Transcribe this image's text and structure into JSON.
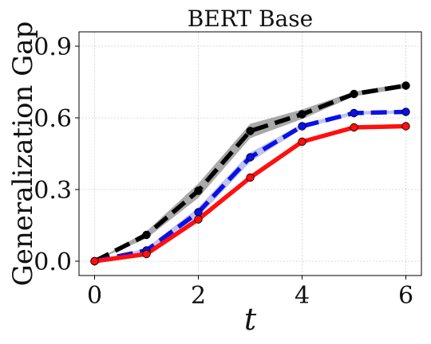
{
  "chart_data": {
    "type": "line",
    "title": "BERT Base",
    "xlabel": "t",
    "ylabel": "Generalization Gap",
    "xlim": [
      -0.3,
      6.3
    ],
    "ylim": [
      -0.06,
      0.96
    ],
    "xticks": [
      0,
      2,
      4,
      6
    ],
    "xtick_labels": [
      "0",
      "2",
      "4",
      "6"
    ],
    "yticks": [
      0.0,
      0.3,
      0.6,
      0.9
    ],
    "ytick_labels": [
      "0.0",
      "0.3",
      "0.6",
      "0.9"
    ],
    "grid": true,
    "legend": "none",
    "x": [
      0,
      1,
      2,
      3,
      4,
      5,
      6
    ],
    "series": [
      {
        "color": "#000000",
        "band_color": "#a0a0a0",
        "line_style": "dashed",
        "values": [
          0.0,
          0.11,
          0.295,
          0.545,
          0.615,
          0.7,
          0.735
        ],
        "band_low": [
          0.0,
          0.095,
          0.265,
          0.515,
          0.595,
          0.69,
          0.725
        ],
        "band_high": [
          0.0,
          0.125,
          0.325,
          0.575,
          0.635,
          0.71,
          0.745
        ]
      },
      {
        "color": "#0a10e6",
        "band_color": "#b8bcf0",
        "line_style": "dashed",
        "values": [
          0.0,
          0.045,
          0.205,
          0.435,
          0.565,
          0.62,
          0.625
        ],
        "band_low": [
          0.0,
          0.035,
          0.185,
          0.415,
          0.555,
          0.613,
          0.618
        ],
        "band_high": [
          0.0,
          0.055,
          0.225,
          0.455,
          0.575,
          0.627,
          0.632
        ]
      },
      {
        "color": "#ff0f0f",
        "band_color": "#ff9a9a",
        "line_style": "solid",
        "values": [
          0.0,
          0.03,
          0.175,
          0.35,
          0.5,
          0.56,
          0.565
        ],
        "band_low": [
          0.0,
          0.025,
          0.165,
          0.342,
          0.495,
          0.556,
          0.561
        ],
        "band_high": [
          0.0,
          0.035,
          0.185,
          0.358,
          0.505,
          0.564,
          0.569
        ]
      }
    ]
  }
}
